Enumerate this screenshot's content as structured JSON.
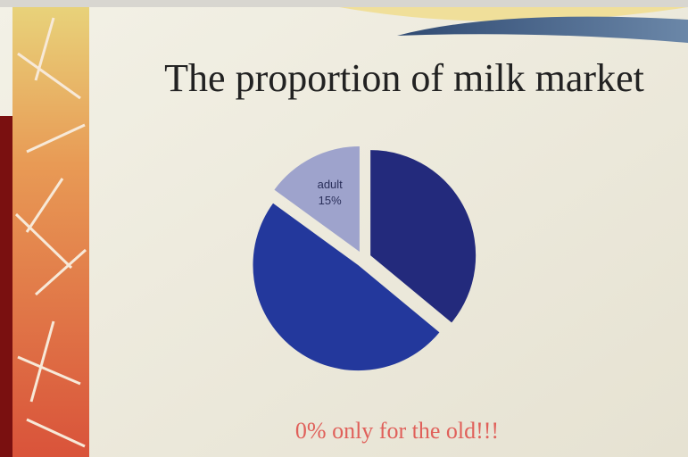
{
  "chart_data": {
    "type": "pie",
    "title": "The proportion  of milk market",
    "annotation": "0%  only for the old!!!",
    "categories": [
      null,
      null,
      "adult"
    ],
    "values": [
      36,
      49,
      15
    ],
    "value_labels": [
      null,
      null,
      "15%"
    ],
    "colors": [
      "#232a7c",
      "#23389c",
      "#9ea3cc"
    ]
  }
}
